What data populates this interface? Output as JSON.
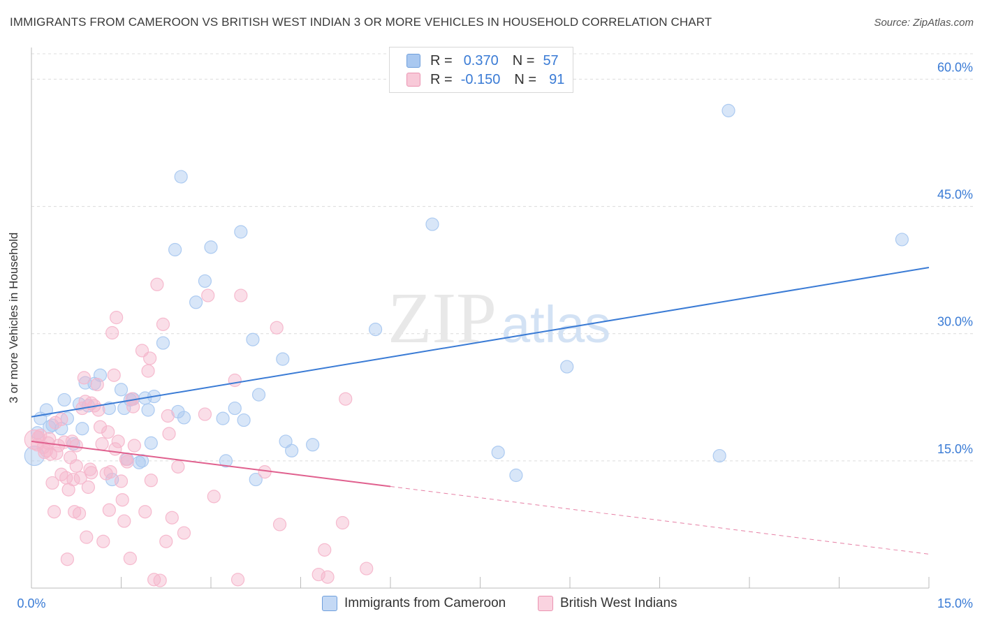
{
  "title": "IMMIGRANTS FROM CAMEROON VS BRITISH WEST INDIAN 3 OR MORE VEHICLES IN HOUSEHOLD CORRELATION CHART",
  "source": "Source: ZipAtlas.com",
  "watermark": {
    "zip": "ZIP",
    "atlas": "atlas"
  },
  "legend": {
    "rows": [
      {
        "r_label": "R =",
        "r_value": "0.370",
        "n_label": "N =",
        "n_value": "57",
        "color": "#a9c8f0"
      },
      {
        "r_label": "R =",
        "r_value": "-0.150",
        "n_label": "N =",
        "n_value": "91",
        "color": "#f5b6cb"
      }
    ]
  },
  "bottom_legend": [
    {
      "label": "Immigrants from Cameroon",
      "color": "#a9c8f0"
    },
    {
      "label": "British West Indians",
      "color": "#f5b6cb"
    }
  ],
  "chart_data": {
    "type": "scatter",
    "title": "IMMIGRANTS FROM CAMEROON VS BRITISH WEST INDIAN 3 OR MORE VEHICLES IN HOUSEHOLD CORRELATION CHART",
    "xlabel": "",
    "ylabel": "3 or more Vehicles in Household",
    "xlim": [
      0,
      15
    ],
    "ylim": [
      0,
      63
    ],
    "x_tick_labels": [
      "0.0%",
      "15.0%"
    ],
    "y_ticks": [
      15,
      30,
      45,
      60
    ],
    "y_tick_labels": [
      "15.0%",
      "30.0%",
      "45.0%",
      "60.0%"
    ],
    "grid": true,
    "legend_position": "top-center",
    "series": [
      {
        "name": "Immigrants from Cameroon",
        "color": "#3a7bd5",
        "fill": "#a9c8f0",
        "trend": {
          "x": [
            0,
            15
          ],
          "y": [
            20.2,
            37.8
          ],
          "dashed_after": null
        },
        "points": [
          [
            0.1,
            18.3
          ],
          [
            0.15,
            20.0
          ],
          [
            0.25,
            21.0
          ],
          [
            0.3,
            19.0
          ],
          [
            0.35,
            19.2
          ],
          [
            0.5,
            18.8
          ],
          [
            0.55,
            22.2
          ],
          [
            0.6,
            20.0
          ],
          [
            0.7,
            17.0
          ],
          [
            0.8,
            21.7
          ],
          [
            0.85,
            18.8
          ],
          [
            0.95,
            21.5
          ],
          [
            0.9,
            24.2
          ],
          [
            1.05,
            24.1
          ],
          [
            1.15,
            25.1
          ],
          [
            1.3,
            21.2
          ],
          [
            1.35,
            12.8
          ],
          [
            1.5,
            23.4
          ],
          [
            1.55,
            21.2
          ],
          [
            1.6,
            15.2
          ],
          [
            1.65,
            22.2
          ],
          [
            1.7,
            22.3
          ],
          [
            1.8,
            14.8
          ],
          [
            1.85,
            15.0
          ],
          [
            1.9,
            22.4
          ],
          [
            1.95,
            21.0
          ],
          [
            2.0,
            17.1
          ],
          [
            2.05,
            22.6
          ],
          [
            2.2,
            28.9
          ],
          [
            2.4,
            39.9
          ],
          [
            2.45,
            20.8
          ],
          [
            2.5,
            48.5
          ],
          [
            2.55,
            20.1
          ],
          [
            2.75,
            33.7
          ],
          [
            2.9,
            36.2
          ],
          [
            3.0,
            40.2
          ],
          [
            3.2,
            20.0
          ],
          [
            3.25,
            15.0
          ],
          [
            3.4,
            21.2
          ],
          [
            3.5,
            42.0
          ],
          [
            3.55,
            19.8
          ],
          [
            3.7,
            29.3
          ],
          [
            3.75,
            12.8
          ],
          [
            3.8,
            22.8
          ],
          [
            4.2,
            27.0
          ],
          [
            4.25,
            17.3
          ],
          [
            4.35,
            16.2
          ],
          [
            4.7,
            16.9
          ],
          [
            5.75,
            30.5
          ],
          [
            6.7,
            42.9
          ],
          [
            7.8,
            16.0
          ],
          [
            8.1,
            13.3
          ],
          [
            8.95,
            26.1
          ],
          [
            11.5,
            15.6
          ],
          [
            11.65,
            56.3
          ],
          [
            14.55,
            41.1
          ],
          [
            0.05,
            15.6
          ]
        ]
      },
      {
        "name": "British West Indians",
        "color": "#e0608e",
        "fill": "#f5b6cb",
        "trend": {
          "x": [
            0,
            15
          ],
          "y": [
            17.3,
            4.0
          ],
          "dashed_after": 6.0
        },
        "points": [
          [
            0.05,
            17.5
          ],
          [
            0.1,
            16.9
          ],
          [
            0.15,
            18.0
          ],
          [
            0.2,
            16.6
          ],
          [
            0.25,
            16.2
          ],
          [
            0.28,
            17.1
          ],
          [
            0.32,
            15.8
          ],
          [
            0.35,
            12.4
          ],
          [
            0.38,
            9.0
          ],
          [
            0.4,
            19.5
          ],
          [
            0.45,
            16.8
          ],
          [
            0.5,
            13.4
          ],
          [
            0.55,
            17.2
          ],
          [
            0.6,
            3.4
          ],
          [
            0.62,
            11.6
          ],
          [
            0.65,
            15.4
          ],
          [
            0.7,
            12.8
          ],
          [
            0.72,
            9.0
          ],
          [
            0.75,
            16.8
          ],
          [
            0.8,
            8.8
          ],
          [
            0.82,
            13.0
          ],
          [
            0.85,
            21.2
          ],
          [
            0.88,
            24.8
          ],
          [
            0.9,
            22.0
          ],
          [
            0.92,
            6.0
          ],
          [
            0.95,
            11.9
          ],
          [
            0.98,
            14.0
          ],
          [
            1.0,
            13.6
          ],
          [
            1.05,
            21.5
          ],
          [
            1.1,
            24.0
          ],
          [
            1.15,
            19.0
          ],
          [
            1.18,
            17.0
          ],
          [
            1.2,
            5.5
          ],
          [
            1.25,
            13.5
          ],
          [
            1.28,
            18.4
          ],
          [
            1.3,
            9.2
          ],
          [
            1.32,
            13.7
          ],
          [
            1.35,
            30.1
          ],
          [
            1.38,
            25.1
          ],
          [
            1.4,
            16.4
          ],
          [
            1.42,
            31.9
          ],
          [
            1.45,
            17.3
          ],
          [
            1.5,
            12.6
          ],
          [
            1.52,
            10.4
          ],
          [
            1.55,
            7.9
          ],
          [
            1.58,
            15.2
          ],
          [
            1.6,
            14.9
          ],
          [
            1.65,
            3.5
          ],
          [
            1.68,
            22.3
          ],
          [
            1.7,
            21.4
          ],
          [
            1.72,
            16.8
          ],
          [
            1.85,
            28.0
          ],
          [
            1.9,
            9.0
          ],
          [
            1.95,
            25.6
          ],
          [
            1.98,
            27.1
          ],
          [
            2.0,
            12.7
          ],
          [
            2.05,
            1.0
          ],
          [
            2.1,
            35.8
          ],
          [
            2.15,
            0.9
          ],
          [
            2.2,
            31.1
          ],
          [
            2.25,
            5.5
          ],
          [
            2.28,
            20.3
          ],
          [
            2.3,
            18.2
          ],
          [
            2.35,
            8.3
          ],
          [
            2.45,
            14.3
          ],
          [
            2.55,
            6.5
          ],
          [
            2.9,
            20.5
          ],
          [
            2.95,
            34.5
          ],
          [
            3.05,
            10.8
          ],
          [
            3.4,
            24.5
          ],
          [
            3.45,
            1.0
          ],
          [
            3.5,
            34.5
          ],
          [
            3.9,
            13.7
          ],
          [
            4.1,
            30.7
          ],
          [
            4.15,
            7.5
          ],
          [
            4.8,
            1.6
          ],
          [
            4.9,
            4.5
          ],
          [
            4.95,
            1.3
          ],
          [
            5.2,
            7.7
          ],
          [
            5.25,
            22.3
          ],
          [
            5.6,
            2.3
          ],
          [
            0.12,
            17.8
          ],
          [
            0.3,
            17.6
          ],
          [
            0.5,
            19.9
          ],
          [
            0.68,
            17.3
          ],
          [
            0.75,
            14.4
          ],
          [
            1.0,
            21.8
          ],
          [
            0.22,
            16.0
          ],
          [
            0.42,
            15.9
          ],
          [
            0.58,
            13.0
          ],
          [
            1.12,
            21.0
          ]
        ]
      }
    ]
  }
}
